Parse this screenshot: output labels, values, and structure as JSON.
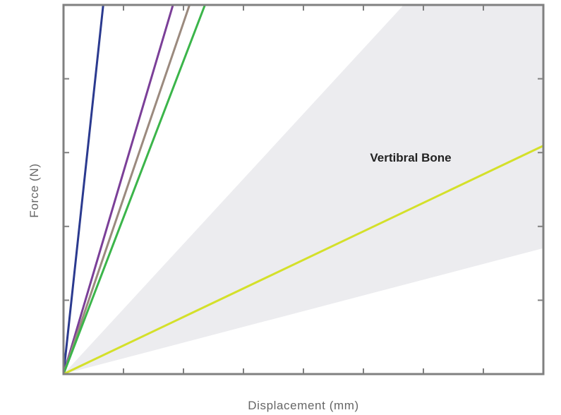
{
  "chart_data": {
    "type": "line",
    "title": "",
    "xlabel": "Displacement (mm)",
    "ylabel": "Force (N)",
    "xlim": [
      0,
      8
    ],
    "ylim": [
      0,
      5
    ],
    "x_ticks": [
      1,
      2,
      3,
      4,
      5,
      6,
      7
    ],
    "y_ticks": [
      1,
      2,
      3,
      4
    ],
    "tick_labels_shown": false,
    "grid": false,
    "legend": "none",
    "region": {
      "label": "Vertibral Bone",
      "color": "#ececef",
      "lower_slope": 0.2131,
      "upper_slope": 0.8816
    },
    "series": [
      {
        "color": "#2b3a8f",
        "slope": 7.55,
        "x": [
          0,
          0.662
        ],
        "y": [
          0,
          5
        ]
      },
      {
        "color": "#7b3f98",
        "slope": 2.74,
        "x": [
          0,
          1.825
        ],
        "y": [
          0,
          5
        ]
      },
      {
        "color": "#9b8a7e",
        "slope": 2.38,
        "x": [
          0,
          2.101
        ],
        "y": [
          0,
          5
        ]
      },
      {
        "color": "#3bb54a",
        "slope": 2.12,
        "x": [
          0,
          2.358
        ],
        "y": [
          0,
          5
        ]
      },
      {
        "color": "#d4e02a",
        "slope": 0.3866,
        "x": [
          0,
          8
        ],
        "y": [
          0,
          3.093
        ]
      }
    ]
  }
}
